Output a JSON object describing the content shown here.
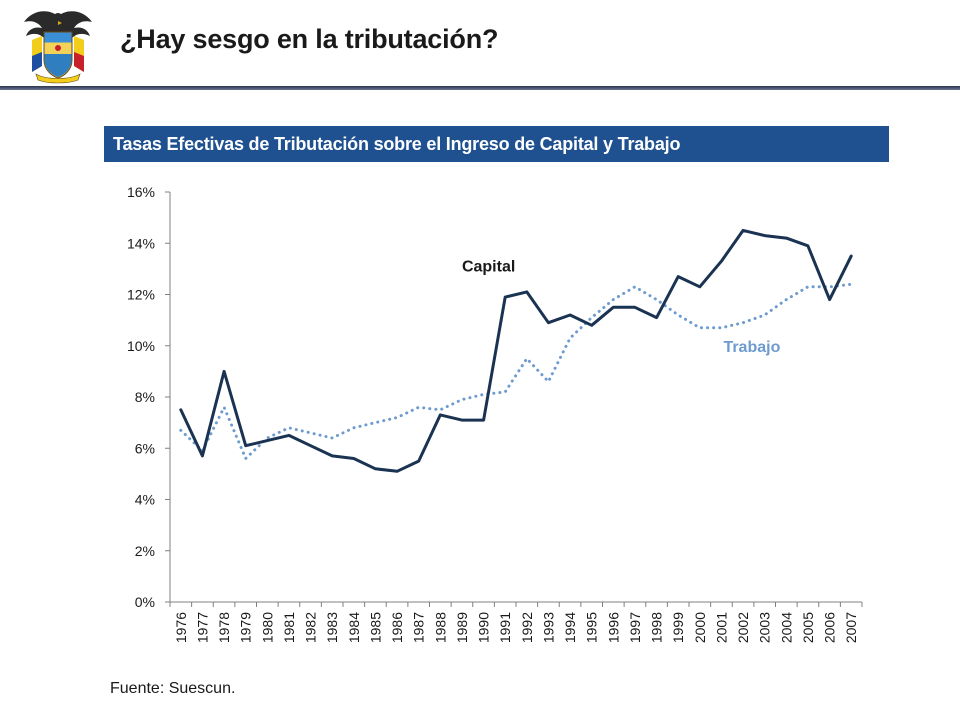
{
  "header": {
    "title": "¿Hay sesgo en la tributación?",
    "logo": "colombia-coat-of-arms"
  },
  "banner": {
    "title": "Tasas Efectivas de Tributación sobre el Ingreso de Capital y Trabajo"
  },
  "footer": {
    "source": "Fuente: Suescun."
  },
  "colors": {
    "capital": "#1b3352",
    "trabajo": "#6e9bcf",
    "banner": "#1f5190",
    "axis": "#808080"
  },
  "chart_data": {
    "type": "line",
    "title": "Tasas Efectivas de Tributación sobre el Ingreso de Capital y Trabajo",
    "xlabel": "",
    "ylabel": "",
    "ylim": [
      0,
      0.16
    ],
    "y_ticks": [
      "0%",
      "2%",
      "4%",
      "6%",
      "8%",
      "10%",
      "12%",
      "14%",
      "16%"
    ],
    "grid": false,
    "x": [
      "1976",
      "1977",
      "1978",
      "1979",
      "1980",
      "1981",
      "1982",
      "1983",
      "1984",
      "1985",
      "1986",
      "1987",
      "1988",
      "1989",
      "1990",
      "1991",
      "1992",
      "1993",
      "1994",
      "1995",
      "1996",
      "1997",
      "1998",
      "1999",
      "2000",
      "2001",
      "2002",
      "2003",
      "2004",
      "2005",
      "2006",
      "2007"
    ],
    "series": [
      {
        "name": "Capital",
        "style": "solid",
        "color": "#1b3352",
        "values": [
          0.075,
          0.057,
          0.09,
          0.061,
          0.063,
          0.065,
          0.061,
          0.057,
          0.056,
          0.052,
          0.051,
          0.055,
          0.073,
          0.071,
          0.071,
          0.119,
          0.121,
          0.109,
          0.112,
          0.108,
          0.115,
          0.115,
          0.111,
          0.127,
          0.123,
          0.133,
          0.145,
          0.143,
          0.142,
          0.139,
          0.118,
          0.135
        ]
      },
      {
        "name": "Trabajo",
        "style": "dotted",
        "color": "#6e9bcf",
        "values": [
          0.067,
          0.059,
          0.076,
          0.056,
          0.064,
          0.068,
          0.066,
          0.064,
          0.068,
          0.07,
          0.072,
          0.076,
          0.075,
          0.079,
          0.081,
          0.082,
          0.095,
          0.086,
          0.103,
          0.111,
          0.118,
          0.123,
          0.118,
          0.112,
          0.107,
          0.107,
          0.109,
          0.112,
          0.118,
          0.123,
          0.123,
          0.124
        ]
      }
    ],
    "annotations": [
      {
        "text": "Capital",
        "series": "Capital"
      },
      {
        "text": "Trabajo",
        "series": "Trabajo"
      }
    ]
  }
}
